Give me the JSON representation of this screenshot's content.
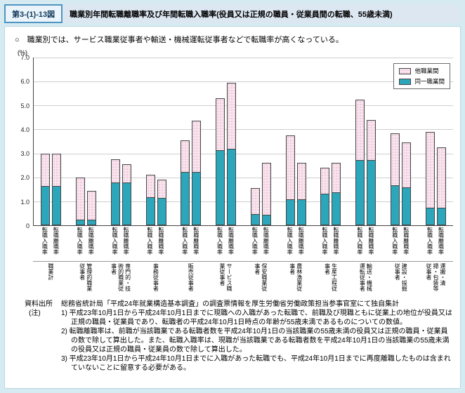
{
  "page": {
    "figure_no": "第3-(1)-13図",
    "title": "職業別年間転職離職率及び年間転職入職率(役員又は正規の職員・従業員間の転職、55歳未満)",
    "lead": "○　職業別では、サービス職業従事者や輸送・機械運転従事者などで転職率が高くなっている。"
  },
  "chart_data": {
    "type": "bar",
    "stacked": true,
    "unit_label": "(%)",
    "ylim": [
      0,
      7.0
    ],
    "ytick_interval": 1.0,
    "yticks": [
      "7.0",
      "6.0",
      "5.0",
      "4.0",
      "3.0",
      "2.0",
      "1.0",
      "0"
    ],
    "grid": true,
    "legend_position": "top-right",
    "colors": {
      "same": "#2ba6ba",
      "other_bg": "#f9e4ee",
      "other_dot": "#cf7fa9"
    },
    "legend": [
      {
        "label": "他職業間",
        "style": "dotted",
        "color": "#f9e4ee"
      },
      {
        "label": "同一職業間",
        "style": "solid",
        "color": "#2ba6ba"
      }
    ],
    "bar_labels": [
      "転職入職率",
      "転職離職率"
    ],
    "series_note": "same=同一職業間(下段・青緑), other=他職業間(上段・ピンク網点), 単位:%",
    "groups": [
      {
        "category": "職業計",
        "bars": [
          {
            "label": "転職入職率",
            "same": 1.6,
            "other": 1.4
          },
          {
            "label": "転職離職率",
            "same": 1.6,
            "other": 1.4
          }
        ]
      },
      {
        "category": "管理的職業従事者",
        "bars": [
          {
            "label": "転職入職率",
            "same": 0.2,
            "other": 1.8
          },
          {
            "label": "転職離職率",
            "same": 0.2,
            "other": 1.25
          }
        ]
      },
      {
        "category": "専門的・技術的職業従事者",
        "bars": [
          {
            "label": "転職入職率",
            "same": 1.75,
            "other": 1.0
          },
          {
            "label": "転職離職率",
            "same": 1.75,
            "other": 0.8
          }
        ]
      },
      {
        "category": "事務従事者",
        "bars": [
          {
            "label": "転職入職率",
            "same": 1.15,
            "other": 0.95
          },
          {
            "label": "転職離職率",
            "same": 1.1,
            "other": 0.8
          }
        ]
      },
      {
        "category": "販売従事者",
        "bars": [
          {
            "label": "転職入職率",
            "same": 2.2,
            "other": 1.35
          },
          {
            "label": "転職離職率",
            "same": 2.2,
            "other": 2.15
          }
        ]
      },
      {
        "category": "サービス職業従事者",
        "bars": [
          {
            "label": "転職入職率",
            "same": 3.1,
            "other": 2.2
          },
          {
            "label": "転職離職率",
            "same": 3.15,
            "other": 2.8
          }
        ]
      },
      {
        "category": "保安職業従事者",
        "bars": [
          {
            "label": "転職入職率",
            "same": 0.45,
            "other": 1.1
          },
          {
            "label": "転職離職率",
            "same": 0.4,
            "other": 2.2
          }
        ]
      },
      {
        "category": "農林漁業従事者",
        "bars": [
          {
            "label": "転職入職率",
            "same": 1.05,
            "other": 2.7
          },
          {
            "label": "転職離職率",
            "same": 1.05,
            "other": 1.55
          }
        ]
      },
      {
        "category": "生産工程従事者",
        "bars": [
          {
            "label": "転職入職率",
            "same": 1.3,
            "other": 1.1
          },
          {
            "label": "転職離職率",
            "same": 1.35,
            "other": 1.25
          }
        ]
      },
      {
        "category": "輸送・機械運転従事者",
        "bars": [
          {
            "label": "転職入職率",
            "same": 2.7,
            "other": 2.55
          },
          {
            "label": "転職離職率",
            "same": 2.7,
            "other": 1.7
          }
        ]
      },
      {
        "category": "建設・採掘従事者",
        "bars": [
          {
            "label": "転職入職率",
            "same": 1.65,
            "other": 2.2
          },
          {
            "label": "転職離職率",
            "same": 1.55,
            "other": 1.9
          }
        ]
      },
      {
        "category": "運搬・清掃・包装等従事者",
        "bars": [
          {
            "label": "転職入職率",
            "same": 0.7,
            "other": 3.2
          },
          {
            "label": "転職離職率",
            "same": 0.7,
            "other": 2.55
          }
        ]
      }
    ]
  },
  "notes": {
    "source_label": "資料出所",
    "source_text": "総務省統計局「平成24年就業構造基本調査」の調査票情報を厚生労働省労働政策担当参事官室にて独自集計",
    "note_label": "(注)",
    "items": [
      "1) 平成23年10月1日から平成24年10月1日までに現職への入職があった転職で、前職及び現職ともに従業上の地位が役員又は正規の職員・従業員であり、転職者の平成24年10月1日時点の年齢が55歳未満であるものについての数値。",
      "2) 転職離職率は、前職が当該職業である転職者数を平成24年10月1日の当該職業の55歳未満の役員又は正規の職員・従業員の数で除して算出した。また、転職入職率は、現職が当該職業である転職者数を平成24年10月1日の当該職業の55歳未満の役員又は正規の職員・従業員の数で除して算出した。",
      "3) 平成23年10月1日から平成24年10月1日までに入職があった転職でも、平成24年10月1日までに再度離職したものは含まれていないことに留意する必要がある。"
    ]
  }
}
